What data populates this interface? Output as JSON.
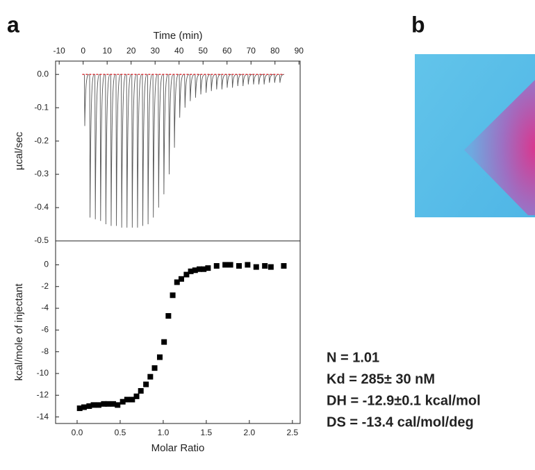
{
  "panel_labels": [
    "a",
    "b"
  ],
  "chart_data": [
    {
      "type": "peaks",
      "xlabel": "Time (min)",
      "ylabel": "µcal/sec",
      "x_axis_position": "top",
      "color": "#555555",
      "baseline_color": "#d9262b",
      "x": [
        0.5,
        2.7,
        4.9,
        7.1,
        9.3,
        11.5,
        13.7,
        15.9,
        18.1,
        20.3,
        22.5,
        24.7,
        26.9,
        29.1,
        31.3,
        33.5,
        35.7,
        37.9,
        40.1,
        42.3,
        44.5,
        46.7,
        48.9,
        51.1,
        53.3,
        55.5,
        57.7,
        59.9,
        62.1,
        64.3,
        66.5,
        68.7,
        70.9,
        73.1,
        75.3,
        77.5,
        79.7,
        81.9
      ],
      "values": [
        -0.155,
        -0.43,
        -0.435,
        -0.44,
        -0.45,
        -0.455,
        -0.455,
        -0.46,
        -0.46,
        -0.46,
        -0.46,
        -0.455,
        -0.45,
        -0.43,
        -0.4,
        -0.36,
        -0.3,
        -0.22,
        -0.13,
        -0.1,
        -0.08,
        -0.07,
        -0.06,
        -0.055,
        -0.05,
        -0.045,
        -0.045,
        -0.04,
        -0.04,
        -0.035,
        -0.035,
        -0.03,
        -0.03,
        -0.03,
        -0.03,
        -0.025,
        -0.025,
        -0.025
      ],
      "xlim": [
        -11.5,
        90.5
      ],
      "xticks": [
        -10,
        0,
        10,
        20,
        30,
        40,
        50,
        60,
        70,
        80,
        90
      ],
      "ylim": [
        -0.5,
        0.04
      ],
      "yticks": [
        {
          "value": 0,
          "label": "0.0"
        },
        -0.1,
        -0.2,
        -0.3,
        -0.4,
        -0.5
      ]
    },
    {
      "type": "scatter",
      "xlabel": "Molar Ratio",
      "ylabel": "kcal/mole of injectant",
      "x_axis_position": "bottom",
      "color": "#000000",
      "x": [
        0.03,
        0.08,
        0.14,
        0.19,
        0.25,
        0.31,
        0.36,
        0.42,
        0.47,
        0.53,
        0.58,
        0.64,
        0.69,
        0.74,
        0.8,
        0.85,
        0.9,
        0.96,
        1.01,
        1.06,
        1.11,
        1.16,
        1.21,
        1.27,
        1.32,
        1.37,
        1.42,
        1.47,
        1.52,
        1.62,
        1.72,
        1.78,
        1.88,
        1.98,
        2.08,
        2.18,
        2.25,
        2.4
      ],
      "values": [
        -13.2,
        -13.1,
        -13.0,
        -12.9,
        -12.9,
        -12.8,
        -12.8,
        -12.8,
        -12.9,
        -12.6,
        -12.4,
        -12.4,
        -12.1,
        -11.6,
        -11.0,
        -10.3,
        -9.5,
        -8.5,
        -7.1,
        -4.7,
        -2.8,
        -1.6,
        -1.3,
        -0.9,
        -0.6,
        -0.5,
        -0.4,
        -0.4,
        -0.3,
        -0.1,
        0.0,
        0.0,
        -0.1,
        0.0,
        -0.2,
        -0.1,
        -0.2,
        -0.1
      ],
      "xlim": [
        -0.25,
        2.59
      ],
      "xticks": [
        {
          "value": 0,
          "label": "0.0"
        },
        0.5,
        {
          "value": 1,
          "label": "1.0"
        },
        1.5,
        {
          "value": 2,
          "label": "2.0"
        },
        2.5
      ],
      "ylim": [
        -14.6,
        2.2
      ],
      "yticks": [
        0,
        -2,
        -4,
        -6,
        -8,
        -10,
        -12,
        -14
      ]
    }
  ],
  "annotations": [
    {
      "text": "N = 1.01",
      "color": "#e8302a"
    },
    {
      "text": "Kd = 285± 30 nM",
      "color": "#111111"
    },
    {
      "text": "DH = -12.9±0.1 kcal/mol",
      "color": "#111111"
    },
    {
      "text": "DS = -13.4 cal/mol/deg",
      "color": "#111111"
    }
  ]
}
